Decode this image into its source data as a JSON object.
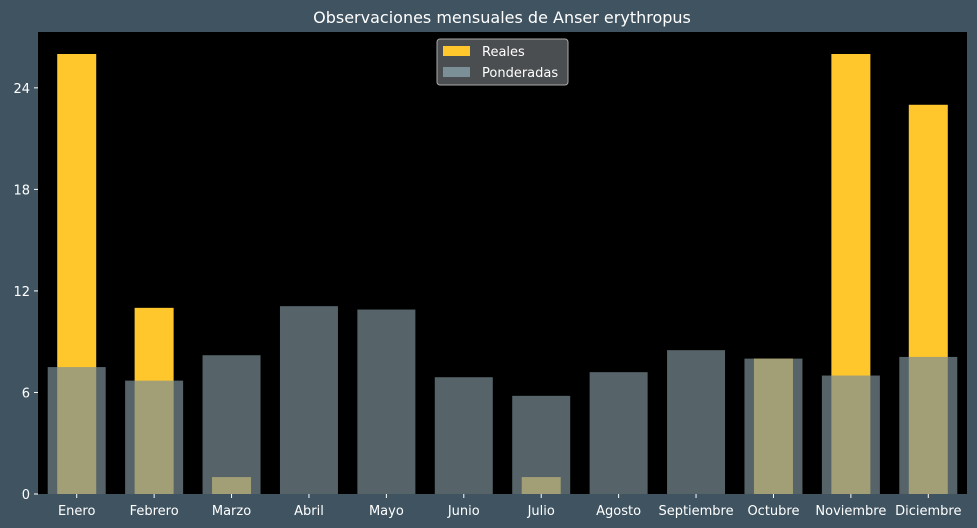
{
  "chart_data": {
    "type": "bar",
    "title": "Observaciones mensuales de Anser erythropus",
    "xlabel": "",
    "ylabel": "",
    "categories": [
      "Enero",
      "Febrero",
      "Marzo",
      "Abril",
      "Mayo",
      "Junio",
      "Julio",
      "Agosto",
      "Septiembre",
      "Octubre",
      "Noviembre",
      "Diciembre"
    ],
    "series": [
      {
        "name": "Reales",
        "color": "#ffc72c",
        "values": [
          26,
          11,
          1,
          0,
          0,
          0,
          1,
          0,
          0,
          8,
          26,
          23
        ]
      },
      {
        "name": "Ponderadas",
        "color": "#7a8f96",
        "values": [
          7.5,
          6.7,
          8.2,
          11.1,
          10.9,
          6.9,
          5.8,
          7.2,
          8.5,
          8.0,
          7.0,
          8.1
        ]
      }
    ],
    "ylim": [
      0,
      27.3
    ],
    "yticks": [
      0,
      6,
      12,
      18,
      24
    ],
    "grid": false,
    "legend_position": "top-center",
    "colors": {
      "figure_background": "#3f5361",
      "plot_background": "#000000",
      "text": "#ffffff"
    }
  }
}
